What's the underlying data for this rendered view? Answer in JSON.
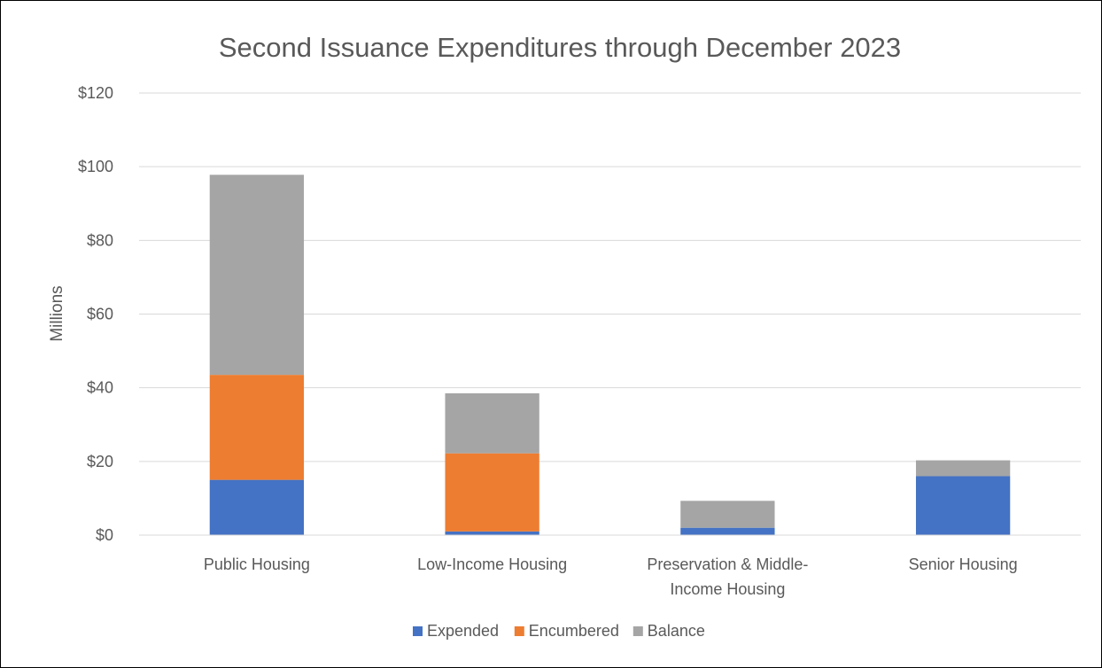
{
  "chart_data": {
    "type": "bar",
    "stacked": true,
    "title": "Second Issuance Expenditures through December 2023",
    "xlabel": "",
    "ylabel": "Millions",
    "ylim": [
      0,
      120
    ],
    "y_ticks": [
      0,
      20,
      40,
      60,
      80,
      100,
      120
    ],
    "y_tick_labels": [
      "$0",
      "$20",
      "$40",
      "$60",
      "$80",
      "$100",
      "$120"
    ],
    "grid": true,
    "legend_position": "bottom",
    "categories": [
      [
        "Public Housing"
      ],
      [
        "Low-Income Housing"
      ],
      [
        "Preservation & Middle-",
        "Income Housing"
      ],
      [
        "Senior Housing"
      ]
    ],
    "series": [
      {
        "name": "Expended",
        "color": "#4472C4",
        "values": [
          15,
          1,
          2,
          16
        ]
      },
      {
        "name": "Encumbered",
        "color": "#ED7D31",
        "values": [
          28.5,
          21.2,
          0,
          0
        ]
      },
      {
        "name": "Balance",
        "color": "#A5A5A5",
        "values": [
          54.3,
          16.3,
          7.3,
          4.3
        ]
      }
    ]
  }
}
